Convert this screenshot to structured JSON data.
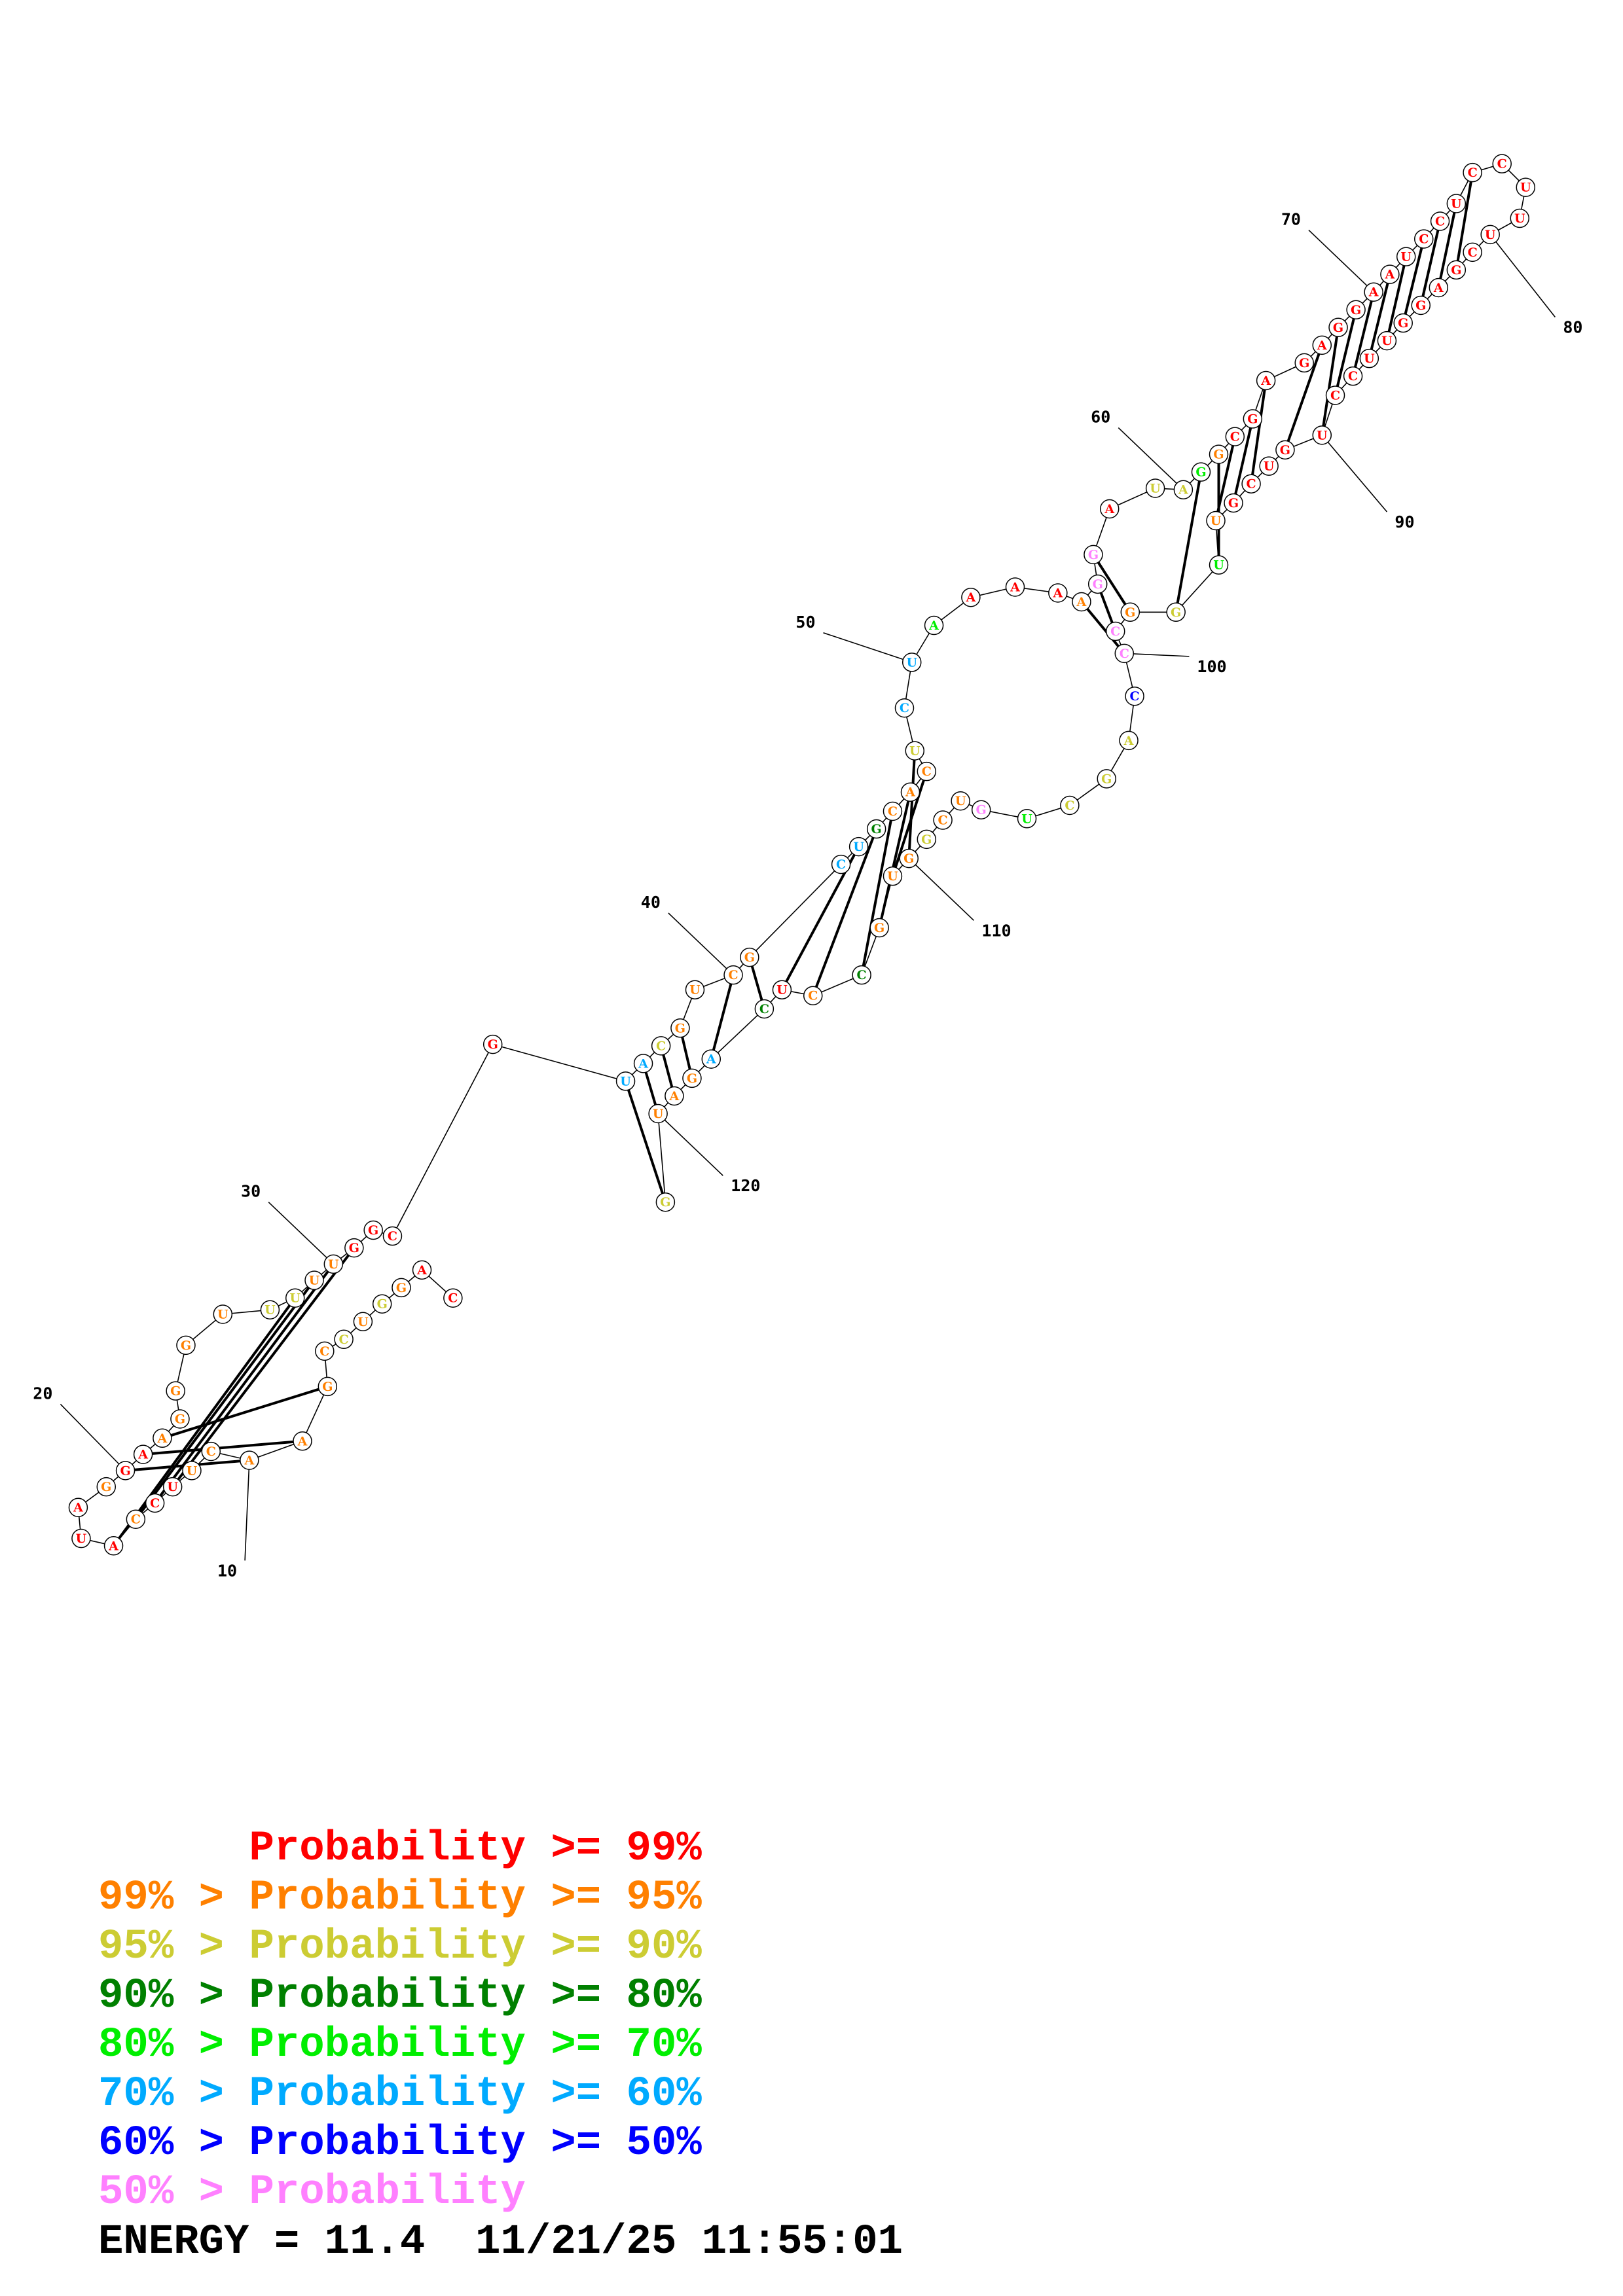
{
  "colors": {
    "c99": "#ff0000",
    "c95": "#ff8000",
    "c90": "#cccc33",
    "c80": "#008000",
    "c70": "#00ee00",
    "c60": "#00aaff",
    "c50": "#0000ff",
    "c0": "#ff80ff"
  },
  "structure": {
    "nucleotides": [
      {
        "i": 1,
        "b": "C",
        "c": "c99"
      },
      {
        "i": 2,
        "b": "A",
        "c": "c99"
      },
      {
        "i": 3,
        "b": "G",
        "c": "c95"
      },
      {
        "i": 4,
        "b": "G",
        "c": "c90"
      },
      {
        "i": 5,
        "b": "U",
        "c": "c95"
      },
      {
        "i": 6,
        "b": "C",
        "c": "c90"
      },
      {
        "i": 7,
        "b": "C",
        "c": "c95"
      },
      {
        "i": 8,
        "b": "G",
        "c": "c95"
      },
      {
        "i": 9,
        "b": "A",
        "c": "c95"
      },
      {
        "i": 10,
        "b": "A",
        "c": "c95"
      },
      {
        "i": 11,
        "b": "C",
        "c": "c95"
      },
      {
        "i": 12,
        "b": "U",
        "c": "c95"
      },
      {
        "i": 13,
        "b": "U",
        "c": "c99"
      },
      {
        "i": 14,
        "b": "C",
        "c": "c99"
      },
      {
        "i": 15,
        "b": "C",
        "c": "c95"
      },
      {
        "i": 16,
        "b": "A",
        "c": "c99"
      },
      {
        "i": 17,
        "b": "U",
        "c": "c99"
      },
      {
        "i": 18,
        "b": "A",
        "c": "c99"
      },
      {
        "i": 19,
        "b": "G",
        "c": "c95"
      },
      {
        "i": 20,
        "b": "G",
        "c": "c99"
      },
      {
        "i": 21,
        "b": "A",
        "c": "c99"
      },
      {
        "i": 22,
        "b": "A",
        "c": "c95"
      },
      {
        "i": 23,
        "b": "G",
        "c": "c95"
      },
      {
        "i": 24,
        "b": "G",
        "c": "c95"
      },
      {
        "i": 25,
        "b": "G",
        "c": "c95"
      },
      {
        "i": 26,
        "b": "U",
        "c": "c95"
      },
      {
        "i": 27,
        "b": "U",
        "c": "c90"
      },
      {
        "i": 28,
        "b": "U",
        "c": "c90"
      },
      {
        "i": 29,
        "b": "U",
        "c": "c95"
      },
      {
        "i": 30,
        "b": "U",
        "c": "c95"
      },
      {
        "i": 31,
        "b": "G",
        "c": "c99"
      },
      {
        "i": 32,
        "b": "G",
        "c": "c99"
      },
      {
        "i": 33,
        "b": "C",
        "c": "c99"
      },
      {
        "i": 34,
        "b": "G",
        "c": "c99"
      },
      {
        "i": 35,
        "b": "U",
        "c": "c60"
      },
      {
        "i": 36,
        "b": "A",
        "c": "c60"
      },
      {
        "i": 37,
        "b": "C",
        "c": "c90"
      },
      {
        "i": 38,
        "b": "G",
        "c": "c95"
      },
      {
        "i": 39,
        "b": "U",
        "c": "c95"
      },
      {
        "i": 40,
        "b": "C",
        "c": "c95"
      },
      {
        "i": 41,
        "b": "G",
        "c": "c95"
      },
      {
        "i": 42,
        "b": "C",
        "c": "c60"
      },
      {
        "i": 43,
        "b": "U",
        "c": "c60"
      },
      {
        "i": 44,
        "b": "G",
        "c": "c80"
      },
      {
        "i": 45,
        "b": "C",
        "c": "c95"
      },
      {
        "i": 46,
        "b": "A",
        "c": "c95"
      },
      {
        "i": 47,
        "b": "C",
        "c": "c95"
      },
      {
        "i": 48,
        "b": "U",
        "c": "c90"
      },
      {
        "i": 49,
        "b": "C",
        "c": "c60"
      },
      {
        "i": 50,
        "b": "U",
        "c": "c60"
      },
      {
        "i": 51,
        "b": "A",
        "c": "c70"
      },
      {
        "i": 52,
        "b": "A",
        "c": "c99"
      },
      {
        "i": 53,
        "b": "A",
        "c": "c99"
      },
      {
        "i": 54,
        "b": "A",
        "c": "c99"
      },
      {
        "i": 55,
        "b": "A",
        "c": "c95"
      },
      {
        "i": 56,
        "b": "G",
        "c": "c0"
      },
      {
        "i": 57,
        "b": "G",
        "c": "c0"
      },
      {
        "i": 58,
        "b": "A",
        "c": "c99"
      },
      {
        "i": 59,
        "b": "U",
        "c": "c90"
      },
      {
        "i": 60,
        "b": "A",
        "c": "c90"
      },
      {
        "i": 61,
        "b": "G",
        "c": "c70"
      },
      {
        "i": 62,
        "b": "G",
        "c": "c95"
      },
      {
        "i": 63,
        "b": "C",
        "c": "c99"
      },
      {
        "i": 64,
        "b": "G",
        "c": "c99"
      },
      {
        "i": 65,
        "b": "A",
        "c": "c99"
      },
      {
        "i": 66,
        "b": "G",
        "c": "c99"
      },
      {
        "i": 67,
        "b": "A",
        "c": "c99"
      },
      {
        "i": 68,
        "b": "G",
        "c": "c99"
      },
      {
        "i": 69,
        "b": "G",
        "c": "c99"
      },
      {
        "i": 70,
        "b": "A",
        "c": "c99"
      },
      {
        "i": 71,
        "b": "A",
        "c": "c99"
      },
      {
        "i": 72,
        "b": "U",
        "c": "c99"
      },
      {
        "i": 73,
        "b": "C",
        "c": "c99"
      },
      {
        "i": 74,
        "b": "C",
        "c": "c99"
      },
      {
        "i": 75,
        "b": "U",
        "c": "c99"
      },
      {
        "i": 76,
        "b": "C",
        "c": "c99"
      },
      {
        "i": 77,
        "b": "C",
        "c": "c99"
      },
      {
        "i": 78,
        "b": "U",
        "c": "c99"
      },
      {
        "i": 79,
        "b": "U",
        "c": "c99"
      },
      {
        "i": 80,
        "b": "U",
        "c": "c99"
      },
      {
        "i": 81,
        "b": "C",
        "c": "c99"
      },
      {
        "i": 82,
        "b": "G",
        "c": "c99"
      },
      {
        "i": 83,
        "b": "A",
        "c": "c99"
      },
      {
        "i": 84,
        "b": "G",
        "c": "c99"
      },
      {
        "i": 85,
        "b": "G",
        "c": "c99"
      },
      {
        "i": 86,
        "b": "U",
        "c": "c99"
      },
      {
        "i": 87,
        "b": "U",
        "c": "c99"
      },
      {
        "i": 88,
        "b": "C",
        "c": "c99"
      },
      {
        "i": 89,
        "b": "C",
        "c": "c99"
      },
      {
        "i": 90,
        "b": "U",
        "c": "c99"
      },
      {
        "i": 91,
        "b": "G",
        "c": "c99"
      },
      {
        "i": 92,
        "b": "U",
        "c": "c99"
      },
      {
        "i": 93,
        "b": "C",
        "c": "c99"
      },
      {
        "i": 94,
        "b": "G",
        "c": "c99"
      },
      {
        "i": 95,
        "b": "U",
        "c": "c95"
      },
      {
        "i": 96,
        "b": "U",
        "c": "c70"
      },
      {
        "i": 97,
        "b": "G",
        "c": "c90"
      },
      {
        "i": 98,
        "b": "G",
        "c": "c95"
      },
      {
        "i": 99,
        "b": "C",
        "c": "c0"
      },
      {
        "i": 100,
        "b": "C",
        "c": "c0"
      },
      {
        "i": 101,
        "b": "C",
        "c": "c50"
      },
      {
        "i": 102,
        "b": "A",
        "c": "c90"
      },
      {
        "i": 103,
        "b": "G",
        "c": "c90"
      },
      {
        "i": 104,
        "b": "C",
        "c": "c90"
      },
      {
        "i": 105,
        "b": "U",
        "c": "c70"
      },
      {
        "i": 106,
        "b": "G",
        "c": "c0"
      },
      {
        "i": 107,
        "b": "U",
        "c": "c95"
      },
      {
        "i": 108,
        "b": "C",
        "c": "c95"
      },
      {
        "i": 109,
        "b": "G",
        "c": "c90"
      },
      {
        "i": 110,
        "b": "G",
        "c": "c95"
      },
      {
        "i": 111,
        "b": "U",
        "c": "c95"
      },
      {
        "i": 112,
        "b": "G",
        "c": "c95"
      },
      {
        "i": 113,
        "b": "C",
        "c": "c80"
      },
      {
        "i": 114,
        "b": "C",
        "c": "c95"
      },
      {
        "i": 115,
        "b": "U",
        "c": "c99"
      },
      {
        "i": 116,
        "b": "C",
        "c": "c80"
      },
      {
        "i": 117,
        "b": "A",
        "c": "c60"
      },
      {
        "i": 118,
        "b": "G",
        "c": "c95"
      },
      {
        "i": 119,
        "b": "A",
        "c": "c95"
      },
      {
        "i": 120,
        "b": "U",
        "c": "c95"
      },
      {
        "i": 121,
        "b": "G",
        "c": "c90"
      }
    ],
    "pairs": [
      [
        8,
        22
      ],
      [
        9,
        21
      ],
      [
        10,
        20
      ],
      [
        13,
        31
      ],
      [
        14,
        30
      ],
      [
        15,
        29
      ],
      [
        16,
        28
      ],
      [
        35,
        121
      ],
      [
        36,
        120
      ],
      [
        37,
        119
      ],
      [
        38,
        118
      ],
      [
        40,
        117
      ],
      [
        41,
        116
      ],
      [
        43,
        115
      ],
      [
        44,
        114
      ],
      [
        45,
        113
      ],
      [
        46,
        112
      ],
      [
        47,
        111
      ],
      [
        48,
        110
      ],
      [
        55,
        100
      ],
      [
        56,
        99
      ],
      [
        57,
        98
      ],
      [
        61,
        97
      ],
      [
        62,
        96
      ],
      [
        63,
        95
      ],
      [
        64,
        94
      ],
      [
        65,
        93
      ],
      [
        67,
        91
      ],
      [
        68,
        90
      ],
      [
        69,
        89
      ],
      [
        70,
        88
      ],
      [
        71,
        87
      ],
      [
        72,
        86
      ],
      [
        73,
        85
      ],
      [
        74,
        84
      ],
      [
        75,
        83
      ],
      [
        76,
        82
      ]
    ],
    "index_labels": [
      "10",
      "20",
      "30",
      "40",
      "50",
      "60",
      "70",
      "80",
      "90",
      "100",
      "110",
      "120"
    ]
  },
  "legend": [
    {
      "prefix": "",
      "text": "Probability >= 99%",
      "color": "c99"
    },
    {
      "prefix": "99% > ",
      "text": "Probability >= 95%",
      "color": "c95"
    },
    {
      "prefix": "95% > ",
      "text": "Probability >= 90%",
      "color": "c90"
    },
    {
      "prefix": "90% > ",
      "text": "Probability >= 80%",
      "color": "c80"
    },
    {
      "prefix": "80% > ",
      "text": "Probability >= 70%",
      "color": "c70"
    },
    {
      "prefix": "70% > ",
      "text": "Probability >= 60%",
      "color": "c60"
    },
    {
      "prefix": "60% > ",
      "text": "Probability >= 50%",
      "color": "c50"
    },
    {
      "prefix": "50% > ",
      "text": "Probability",
      "color": "c0"
    }
  ],
  "footer": {
    "energy_label": "ENERGY = 11.4",
    "timestamp": "11/21/25 11:55:01"
  }
}
